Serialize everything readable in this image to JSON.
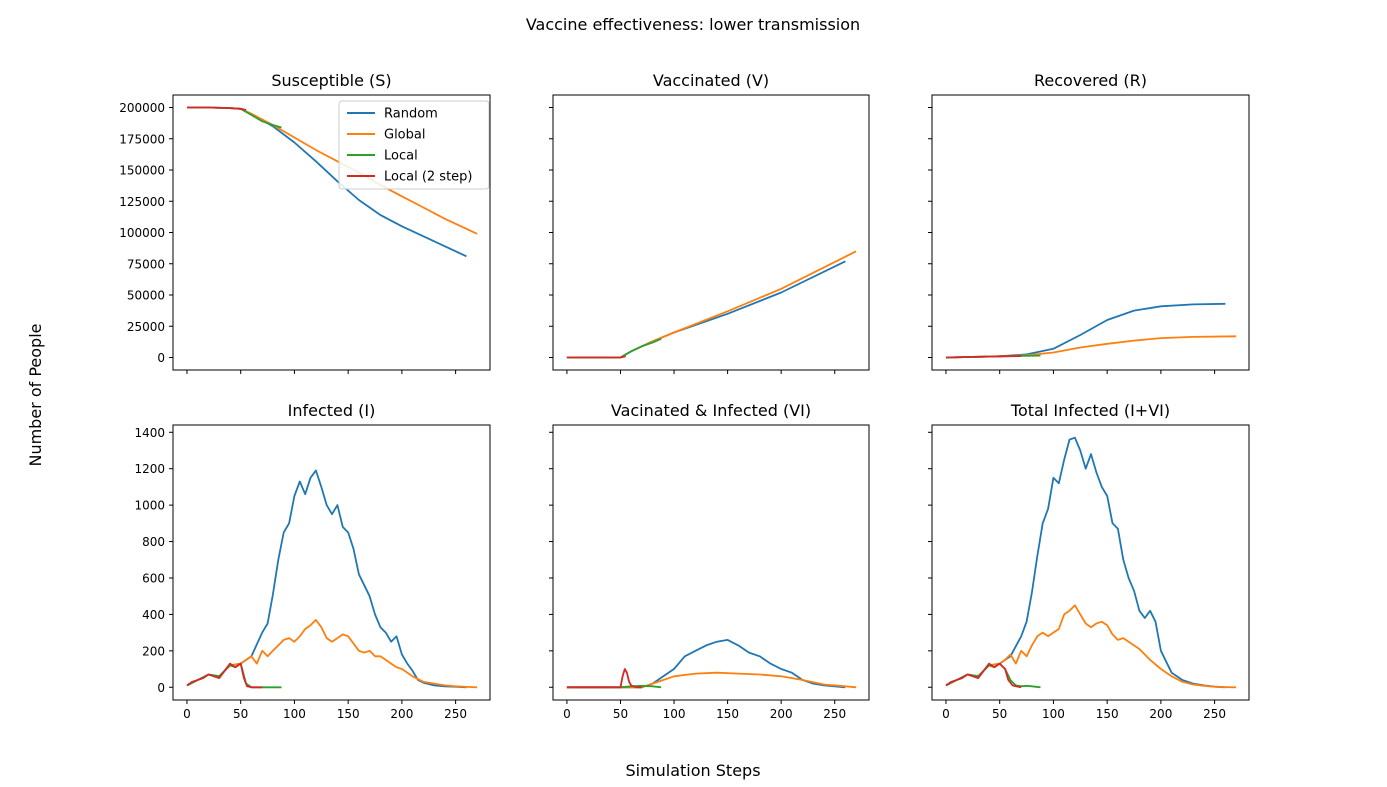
{
  "figure": {
    "suptitle": "Vaccine effectiveness: lower transmission",
    "xlabel": "Simulation Steps",
    "ylabel": "Number of People"
  },
  "colors": {
    "Random": "#1f77b4",
    "Global": "#ff7f0e",
    "Local": "#2ca02c",
    "Local (2 step)": "#d62728"
  },
  "chart_data": [
    {
      "type": "line",
      "title": "Susceptible (S)",
      "xlim": [
        -13,
        282
      ],
      "ylim": [
        -10000,
        210000
      ],
      "xticks": [
        0,
        50,
        100,
        150,
        200,
        250
      ],
      "yticks": [
        0,
        25000,
        50000,
        75000,
        100000,
        125000,
        150000,
        175000,
        200000
      ],
      "legend": "top-right",
      "series": [
        {
          "name": "Random",
          "x": [
            0,
            20,
            40,
            50,
            60,
            80,
            100,
            120,
            140,
            160,
            180,
            200,
            220,
            240,
            260
          ],
          "y": [
            200000,
            200000,
            199500,
            199000,
            195000,
            185000,
            172000,
            157000,
            141000,
            126000,
            114000,
            105000,
            97000,
            89000,
            81000
          ]
        },
        {
          "name": "Global",
          "x": [
            0,
            20,
            40,
            50,
            60,
            80,
            100,
            120,
            140,
            160,
            180,
            200,
            220,
            240,
            270
          ],
          "y": [
            200000,
            200000,
            199500,
            199000,
            195000,
            186000,
            176000,
            166000,
            157000,
            148000,
            138000,
            129000,
            120000,
            111000,
            99000
          ]
        },
        {
          "name": "Local",
          "x": [
            0,
            20,
            40,
            50,
            60,
            70,
            80,
            88
          ],
          "y": [
            200000,
            200000,
            199500,
            199000,
            194000,
            189000,
            186000,
            184000
          ]
        },
        {
          "name": "Local (2 step)",
          "x": [
            0,
            20,
            40,
            50,
            55
          ],
          "y": [
            200000,
            200000,
            199500,
            199000,
            198000
          ]
        }
      ]
    },
    {
      "type": "line",
      "title": "Vaccinated (V)",
      "xlim": [
        -13,
        282
      ],
      "ylim": [
        -10000,
        210000
      ],
      "xticks": [
        0,
        50,
        100,
        150,
        200,
        250
      ],
      "yticks": [
        0,
        25000,
        50000,
        75000,
        100000,
        125000,
        150000,
        175000,
        200000
      ],
      "series": [
        {
          "name": "Random",
          "x": [
            0,
            50,
            60,
            80,
            100,
            150,
            200,
            260
          ],
          "y": [
            0,
            0,
            5000,
            13000,
            20000,
            35000,
            52000,
            77000
          ]
        },
        {
          "name": "Global",
          "x": [
            0,
            50,
            60,
            80,
            100,
            150,
            200,
            270
          ],
          "y": [
            0,
            0,
            5000,
            13000,
            20000,
            37000,
            55000,
            85000
          ]
        },
        {
          "name": "Local",
          "x": [
            0,
            50,
            60,
            70,
            80,
            88
          ],
          "y": [
            0,
            0,
            5000,
            9000,
            12000,
            15000
          ]
        },
        {
          "name": "Local (2 step)",
          "x": [
            0,
            50,
            55
          ],
          "y": [
            0,
            0,
            1000
          ]
        }
      ]
    },
    {
      "type": "line",
      "title": "Recovered (R)",
      "xlim": [
        -13,
        282
      ],
      "ylim": [
        -10000,
        210000
      ],
      "xticks": [
        0,
        50,
        100,
        150,
        200,
        250
      ],
      "yticks": [
        0,
        25000,
        50000,
        75000,
        100000,
        125000,
        150000,
        175000,
        200000
      ],
      "series": [
        {
          "name": "Random",
          "x": [
            0,
            50,
            75,
            100,
            125,
            150,
            175,
            200,
            230,
            260
          ],
          "y": [
            0,
            1000,
            2500,
            7000,
            18000,
            30000,
            37500,
            41000,
            42500,
            43000
          ]
        },
        {
          "name": "Global",
          "x": [
            0,
            50,
            75,
            100,
            125,
            150,
            175,
            200,
            230,
            270
          ],
          "y": [
            0,
            1000,
            1800,
            4000,
            8000,
            11000,
            13500,
            15500,
            16500,
            17000
          ]
        },
        {
          "name": "Local",
          "x": [
            0,
            50,
            70,
            88
          ],
          "y": [
            0,
            1000,
            1300,
            1500
          ]
        },
        {
          "name": "Local (2 step)",
          "x": [
            0,
            40,
            50,
            70
          ],
          "y": [
            0,
            700,
            1000,
            1100
          ]
        }
      ]
    },
    {
      "type": "line",
      "title": "Infected (I)",
      "xlim": [
        -13,
        282
      ],
      "ylim": [
        -70,
        1440
      ],
      "xticks": [
        0,
        50,
        100,
        150,
        200,
        250
      ],
      "yticks": [
        0,
        200,
        400,
        600,
        800,
        1000,
        1200,
        1400
      ],
      "series": [
        {
          "name": "Random",
          "x": [
            0,
            10,
            20,
            30,
            40,
            50,
            60,
            70,
            75,
            80,
            85,
            90,
            95,
            100,
            105,
            110,
            115,
            120,
            125,
            130,
            135,
            140,
            145,
            150,
            155,
            160,
            165,
            170,
            175,
            180,
            185,
            190,
            195,
            200,
            205,
            210,
            215,
            220,
            230,
            240,
            250,
            260
          ],
          "y": [
            10,
            40,
            70,
            60,
            120,
            130,
            170,
            300,
            350,
            510,
            700,
            850,
            900,
            1050,
            1130,
            1060,
            1150,
            1190,
            1100,
            1000,
            950,
            1000,
            880,
            850,
            760,
            620,
            560,
            500,
            400,
            330,
            300,
            250,
            280,
            180,
            130,
            90,
            40,
            25,
            10,
            5,
            3,
            0
          ]
        },
        {
          "name": "Global",
          "x": [
            0,
            10,
            20,
            30,
            40,
            50,
            55,
            60,
            65,
            70,
            75,
            80,
            85,
            90,
            95,
            100,
            105,
            110,
            115,
            120,
            125,
            130,
            135,
            140,
            145,
            150,
            155,
            160,
            165,
            170,
            175,
            180,
            185,
            190,
            195,
            200,
            210,
            220,
            230,
            240,
            250,
            260,
            270
          ],
          "y": [
            10,
            40,
            70,
            60,
            120,
            130,
            150,
            170,
            130,
            200,
            170,
            200,
            230,
            260,
            270,
            250,
            280,
            320,
            340,
            370,
            330,
            270,
            250,
            270,
            290,
            280,
            240,
            200,
            190,
            200,
            170,
            170,
            150,
            130,
            110,
            100,
            60,
            30,
            20,
            10,
            5,
            2,
            0
          ]
        },
        {
          "name": "Local",
          "x": [
            0,
            10,
            20,
            30,
            40,
            45,
            50,
            55,
            60,
            70,
            80,
            88
          ],
          "y": [
            10,
            40,
            70,
            60,
            120,
            110,
            130,
            20,
            0,
            0,
            0,
            0
          ]
        },
        {
          "name": "Local (2 step)",
          "x": [
            0,
            5,
            10,
            15,
            20,
            25,
            30,
            35,
            40,
            45,
            50,
            53,
            56,
            60,
            70
          ],
          "y": [
            10,
            30,
            40,
            50,
            70,
            60,
            50,
            90,
            130,
            110,
            130,
            50,
            5,
            0,
            0
          ]
        }
      ]
    },
    {
      "type": "line",
      "title": "Vacinated & Infected (VI)",
      "xlim": [
        -13,
        282
      ],
      "ylim": [
        -70,
        1440
      ],
      "xticks": [
        0,
        50,
        100,
        150,
        200,
        250
      ],
      "yticks": [
        0,
        200,
        400,
        600,
        800,
        1000,
        1200,
        1400
      ],
      "series": [
        {
          "name": "Random",
          "x": [
            0,
            50,
            60,
            70,
            80,
            90,
            100,
            110,
            120,
            130,
            140,
            150,
            160,
            170,
            180,
            190,
            200,
            210,
            220,
            230,
            240,
            250,
            260
          ],
          "y": [
            0,
            0,
            0,
            0,
            20,
            60,
            100,
            170,
            200,
            230,
            250,
            260,
            230,
            190,
            170,
            130,
            100,
            80,
            40,
            20,
            10,
            5,
            0
          ]
        },
        {
          "name": "Global",
          "x": [
            0,
            50,
            60,
            70,
            80,
            90,
            100,
            120,
            140,
            160,
            180,
            200,
            220,
            240,
            260,
            270
          ],
          "y": [
            0,
            0,
            0,
            0,
            20,
            40,
            60,
            75,
            80,
            75,
            70,
            60,
            40,
            15,
            5,
            0
          ]
        },
        {
          "name": "Local",
          "x": [
            0,
            50,
            60,
            70,
            80,
            88
          ],
          "y": [
            0,
            0,
            5,
            8,
            5,
            0
          ]
        },
        {
          "name": "Local (2 step)",
          "x": [
            0,
            50,
            52,
            54,
            56,
            58,
            60,
            62,
            65,
            70
          ],
          "y": [
            0,
            0,
            60,
            100,
            80,
            30,
            10,
            5,
            0,
            0
          ]
        }
      ]
    },
    {
      "type": "line",
      "title": "Total Infected (I+VI)",
      "xlim": [
        -13,
        282
      ],
      "ylim": [
        -70,
        1440
      ],
      "xticks": [
        0,
        50,
        100,
        150,
        200,
        250
      ],
      "yticks": [
        0,
        200,
        400,
        600,
        800,
        1000,
        1200,
        1400
      ],
      "series": [
        {
          "name": "Random",
          "x": [
            0,
            10,
            20,
            30,
            40,
            50,
            60,
            70,
            75,
            80,
            85,
            90,
            95,
            100,
            105,
            110,
            115,
            120,
            125,
            130,
            135,
            140,
            145,
            150,
            155,
            160,
            165,
            170,
            175,
            180,
            185,
            190,
            195,
            200,
            210,
            220,
            230,
            240,
            250,
            260
          ],
          "y": [
            10,
            40,
            70,
            60,
            120,
            130,
            170,
            280,
            360,
            520,
            720,
            900,
            980,
            1150,
            1120,
            1250,
            1360,
            1370,
            1300,
            1200,
            1280,
            1180,
            1100,
            1050,
            900,
            870,
            700,
            600,
            530,
            420,
            380,
            420,
            360,
            200,
            80,
            40,
            20,
            10,
            3,
            0
          ]
        },
        {
          "name": "Global",
          "x": [
            0,
            10,
            20,
            30,
            40,
            50,
            55,
            60,
            65,
            70,
            75,
            80,
            85,
            90,
            95,
            100,
            105,
            110,
            115,
            120,
            125,
            130,
            135,
            140,
            145,
            150,
            155,
            160,
            165,
            170,
            175,
            180,
            185,
            190,
            200,
            210,
            220,
            230,
            240,
            250,
            260,
            270
          ],
          "y": [
            10,
            40,
            70,
            60,
            120,
            130,
            150,
            180,
            130,
            200,
            170,
            230,
            280,
            300,
            280,
            300,
            320,
            400,
            420,
            450,
            400,
            350,
            330,
            350,
            360,
            340,
            290,
            260,
            270,
            250,
            230,
            210,
            180,
            150,
            100,
            60,
            30,
            15,
            8,
            3,
            1,
            0
          ]
        },
        {
          "name": "Local",
          "x": [
            0,
            10,
            20,
            30,
            40,
            45,
            50,
            55,
            60,
            65,
            70,
            75,
            80,
            88
          ],
          "y": [
            10,
            40,
            70,
            60,
            120,
            110,
            130,
            100,
            40,
            10,
            5,
            8,
            5,
            0
          ]
        },
        {
          "name": "Local (2 step)",
          "x": [
            0,
            5,
            10,
            15,
            20,
            25,
            30,
            35,
            40,
            45,
            50,
            55,
            58,
            62,
            65,
            70
          ],
          "y": [
            10,
            30,
            40,
            50,
            70,
            60,
            50,
            90,
            130,
            110,
            130,
            100,
            40,
            10,
            5,
            0
          ]
        }
      ]
    }
  ]
}
